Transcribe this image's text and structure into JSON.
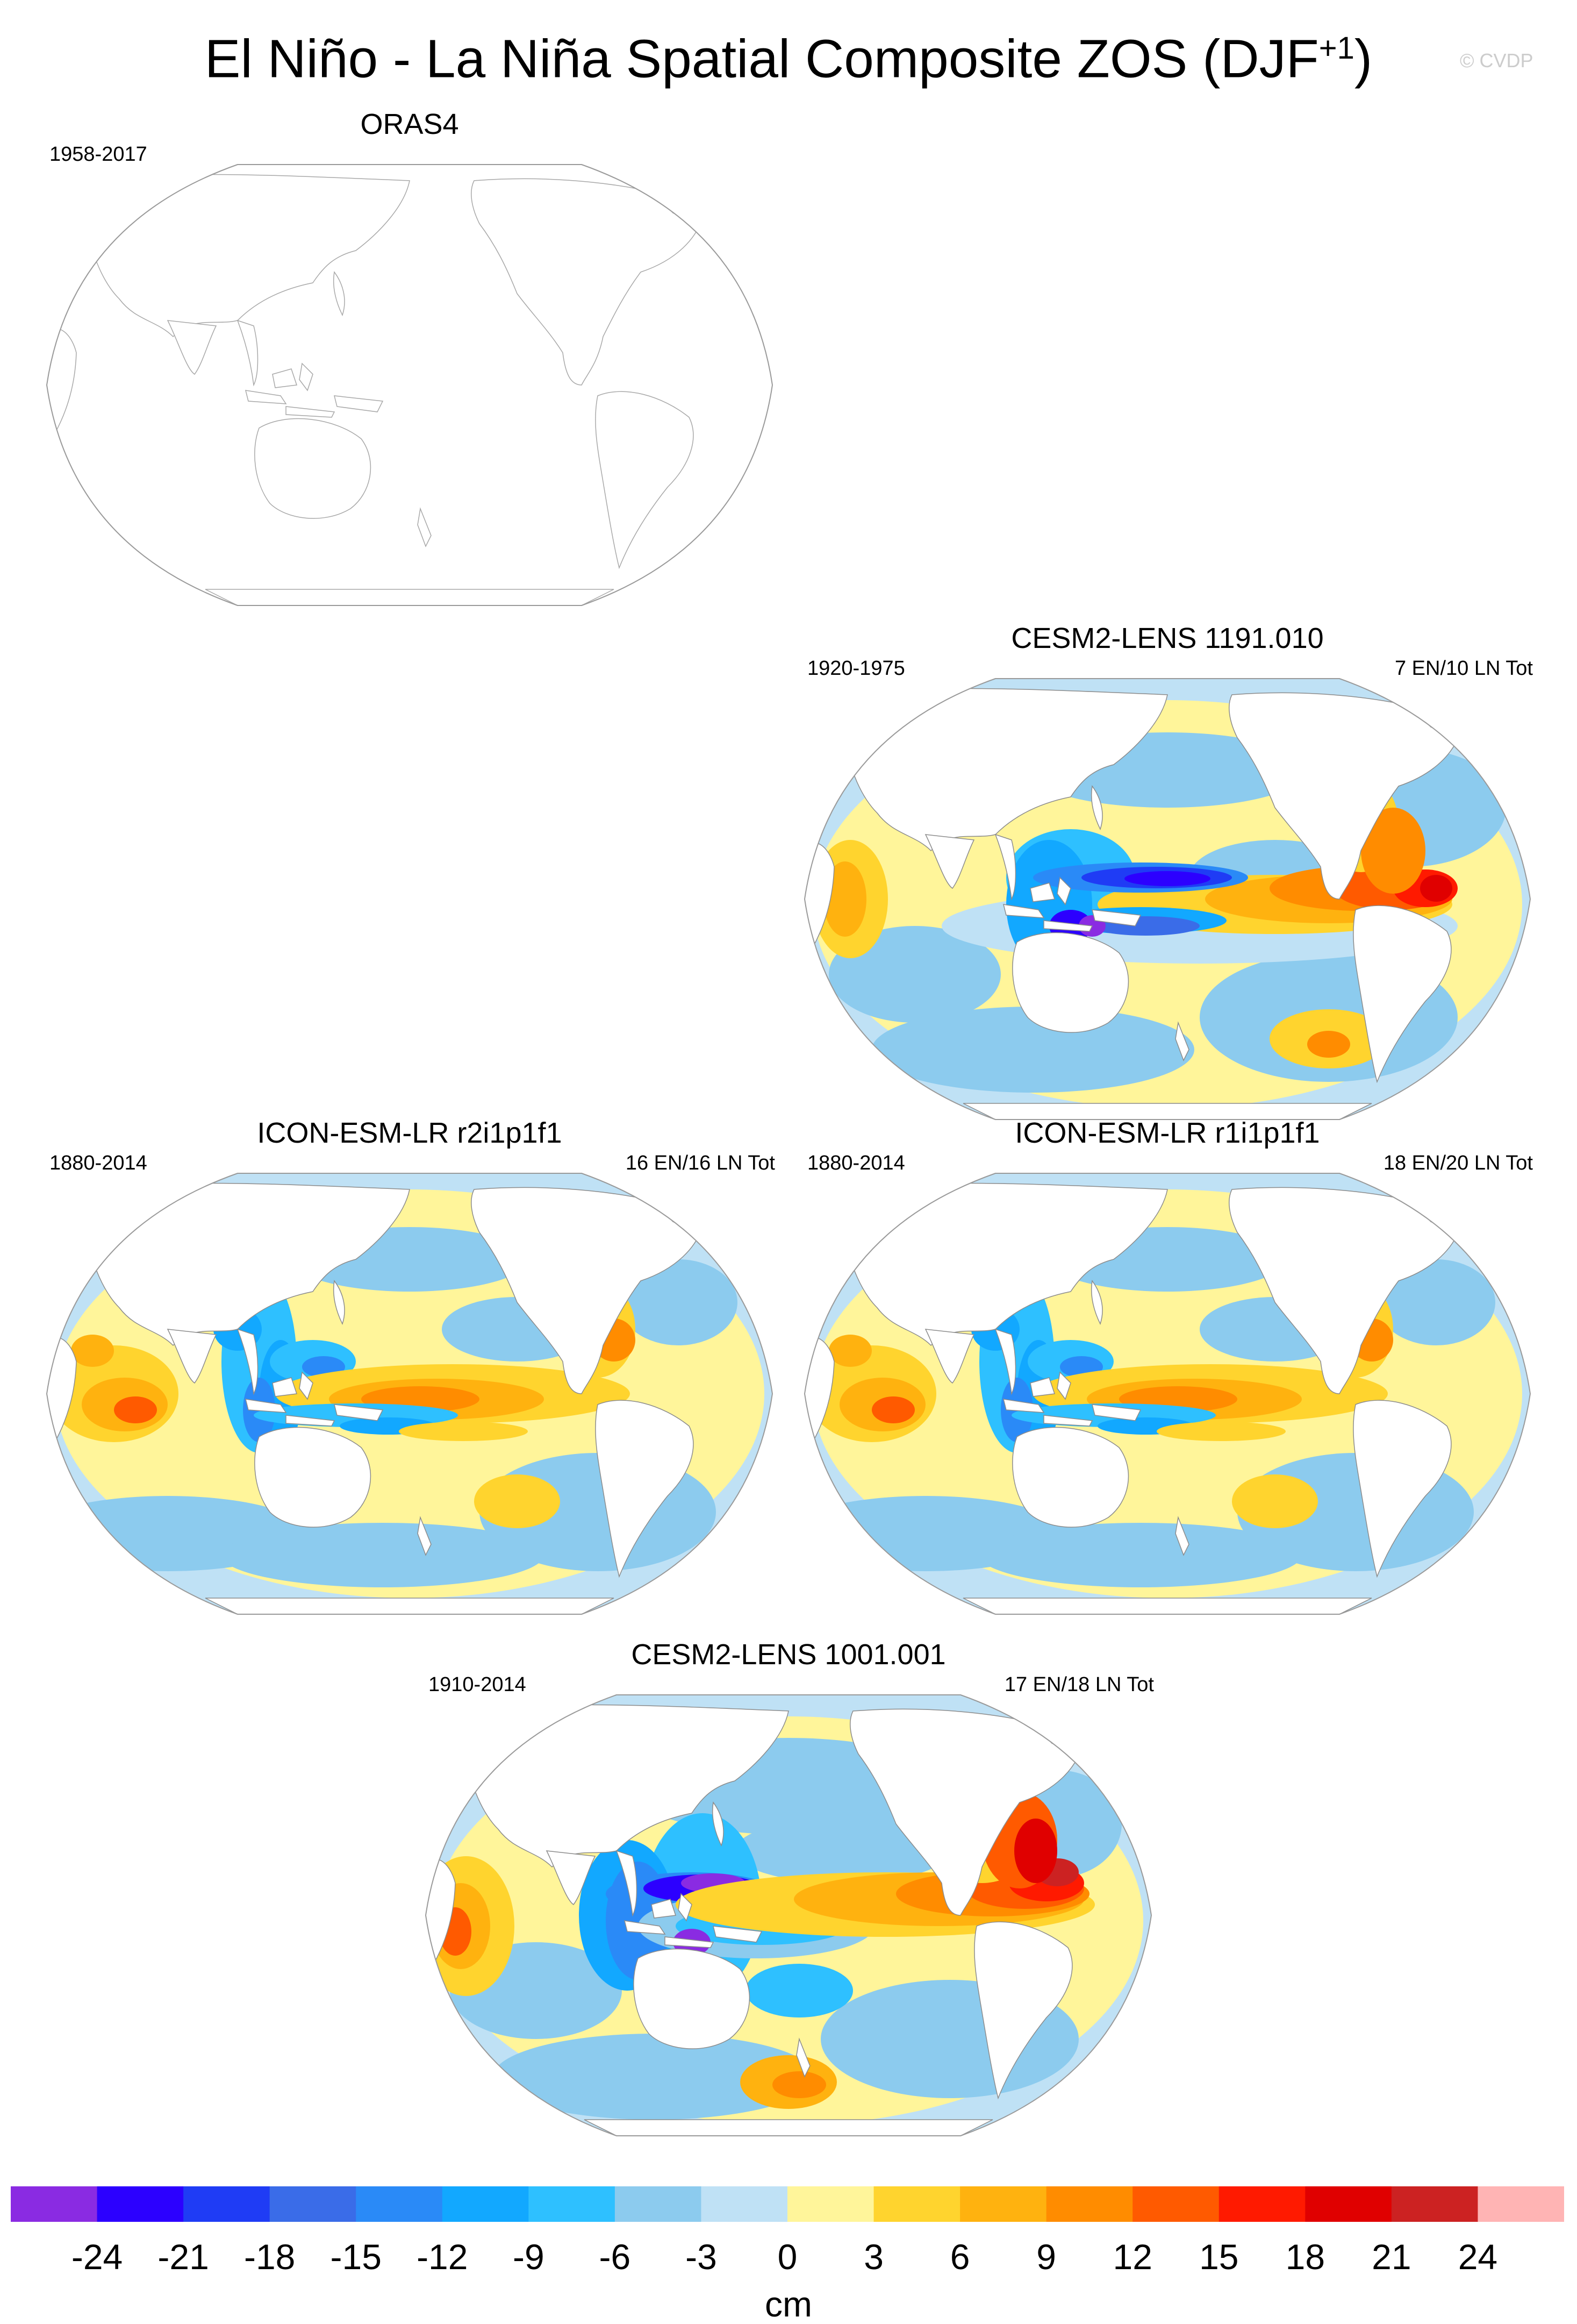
{
  "figure": {
    "title_main": "El Niño - La Niña Spatial Composite ZOS (DJF",
    "title_sup": "+1",
    "title_close": ")",
    "credit": "© CVDP"
  },
  "panels": [
    {
      "title": "ORAS4",
      "period": "1958-2017",
      "count": "",
      "has_data": false
    },
    {
      "title": "CESM2-LENS 1191.010",
      "period": "1920-1975",
      "count": "7 EN/10 LN Tot",
      "has_data": true
    },
    {
      "title": "ICON-ESM-LR r2i1p1f1",
      "period": "1880-2014",
      "count": "16 EN/16 LN Tot",
      "has_data": true
    },
    {
      "title": "ICON-ESM-LR r1i1p1f1",
      "period": "1880-2014",
      "count": "18 EN/20 LN Tot",
      "has_data": true
    },
    {
      "title": "CESM2-LENS 1001.001",
      "period": "1910-2014",
      "count": "17 EN/18 LN Tot",
      "has_data": true
    }
  ],
  "colorbar": {
    "units": "cm",
    "ticks": [
      "-24",
      "-21",
      "-18",
      "-15",
      "-12",
      "-9",
      "-6",
      "-3",
      "0",
      "3",
      "6",
      "9",
      "12",
      "15",
      "18",
      "21",
      "24"
    ],
    "colors": [
      "#8a2be2",
      "#2c00ff",
      "#1f3cf5",
      "#3a6ce8",
      "#2a8af7",
      "#12a8ff",
      "#2ec0ff",
      "#8ccbee",
      "#bfe1f5",
      "#fff59a",
      "#ffd42e",
      "#ffb20f",
      "#ff8c00",
      "#ff5a00",
      "#ff1a00",
      "#e00000",
      "#cc2222",
      "#ffb4b4"
    ]
  }
}
